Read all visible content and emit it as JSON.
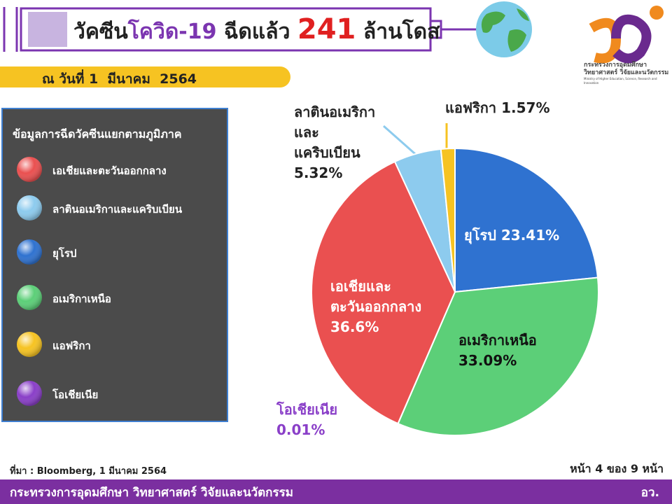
{
  "header": {
    "title": [
      "วัคซีน",
      "โควิด-19",
      " ฉีดแล้ว ",
      "241",
      " ล้านโดส"
    ],
    "date": "ณ วันที่ 1  มีนาคม  2564"
  },
  "logo": {
    "lines": [
      "กระทรวงการอุดมศึกษา",
      "วิทยาศาสตร์ วิจัยและนวัตกรรม",
      "Ministry of Higher Education, Science, Research and Innovation"
    ]
  },
  "chart_data": {
    "type": "pie",
    "categories": [
      "ยุโรป",
      "อเมริกาเหนือ",
      "โอเชียเนีย",
      "เอเชียและตะวันออกกลาง",
      "ลาตินอเมริกาและแคริบเบียน",
      "แอฟริกา"
    ],
    "values": [
      23.41,
      33.09,
      0.01,
      36.6,
      5.32,
      1.57
    ],
    "value_labels": [
      "23.41%",
      "33.09%",
      "0.01%",
      "36.6%",
      "5.32%",
      "1.57%"
    ],
    "colors": [
      "#2f72d0",
      "#5ccf78",
      "#8a3fc8",
      "#ea5050",
      "#8dcbee",
      "#f6c322"
    ],
    "legend": {
      "title": "ข้อมูลการฉีดวัคซีนแยกตามภูมิภาค",
      "items": [
        {
          "name": "เอเชียและตะวันออกกลาง",
          "color": "#ea5050"
        },
        {
          "name": "ลาตินอเมริกาและแคริบเบียน",
          "color": "#8dcbee"
        },
        {
          "name": "ยุโรป",
          "color": "#2f72d0"
        },
        {
          "name": "อเมริกาเหนือ",
          "color": "#5ccf78"
        },
        {
          "name": "แอฟริกา",
          "color": "#f6c322"
        },
        {
          "name": "โอเชียเนีย",
          "color": "#8a3fc8"
        }
      ]
    }
  },
  "footer": {
    "source": "ที่มา : Bloomberg, 1 มีนาคม 2564",
    "page": "หน้า 4 ของ 9 หน้า",
    "ministry": "กระทรวงการอุดมศึกษา วิทยาศาสตร์ วิจัยและนวัตกรรม",
    "short": "อว."
  }
}
